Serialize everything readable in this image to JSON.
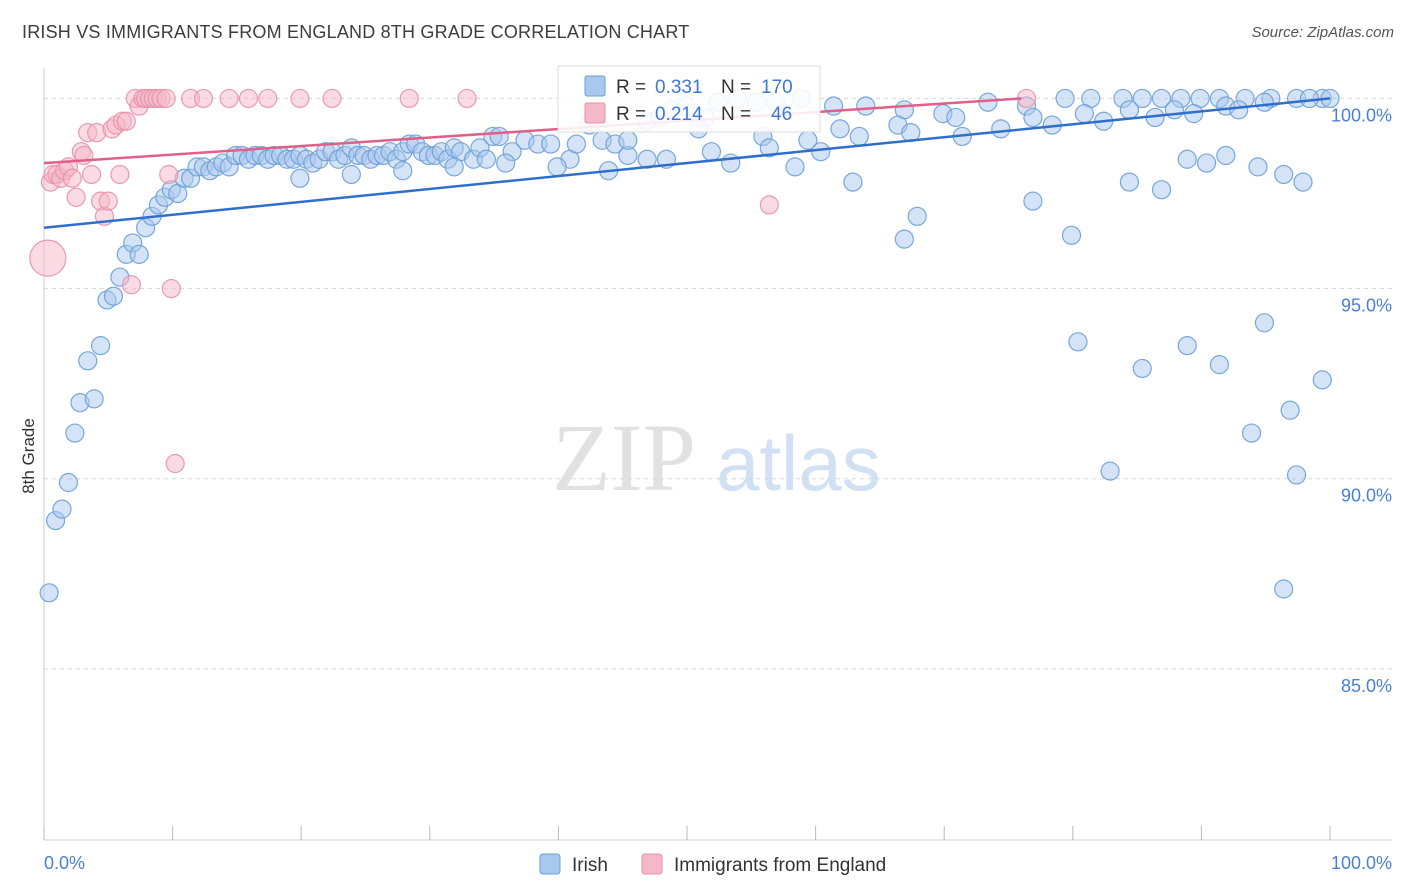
{
  "header": {
    "title": "IRISH VS IMMIGRANTS FROM ENGLAND 8TH GRADE CORRELATION CHART",
    "source": "Source: ZipAtlas.com"
  },
  "watermark": {
    "zip": "ZIP",
    "atlas": "atlas"
  },
  "chart_data": {
    "type": "scatter",
    "ylabel": "8th Grade",
    "xlim": [
      0,
      100
    ],
    "ylim": [
      80.5,
      100.8
    ],
    "y_ticks": [
      {
        "value": 100,
        "label": "100.0%"
      },
      {
        "value": 95,
        "label": "95.0%"
      },
      {
        "value": 90,
        "label": "90.0%"
      },
      {
        "value": 85,
        "label": "85.0%"
      }
    ],
    "x_ticks": [
      {
        "value": 0,
        "label": "0.0%"
      },
      {
        "value": 100,
        "label": "100.0%"
      }
    ],
    "x_minor_ticks": [
      0,
      10,
      20,
      30,
      40,
      50,
      60,
      70,
      80,
      90,
      100
    ],
    "grid": "horizontal-dashed",
    "legend_position": "bottom-center",
    "colors": {
      "irish_fill": "#a9c8ee",
      "irish_stroke": "#6a9fd8",
      "irish_line": "#2f6fcc",
      "england_fill": "#f5b8c8",
      "england_stroke": "#e890a8",
      "england_line": "#e0608a",
      "value_text": "#3d78d8",
      "grid": "#d6d6d6"
    },
    "stats": [
      {
        "r_label": "R = ",
        "r": "0.331",
        "n_label": "N = ",
        "n": "170"
      },
      {
        "r_label": "R = ",
        "r": "0.214",
        "n_label": "N = ",
        "n": "46"
      }
    ],
    "series": [
      {
        "name": "Irish",
        "trend": {
          "x0": 0,
          "y0": 96.6,
          "x1": 100,
          "y1": 100.0
        },
        "points": [
          [
            0.4,
            87.0
          ],
          [
            0.9,
            88.9
          ],
          [
            1.4,
            89.2
          ],
          [
            1.9,
            89.9
          ],
          [
            2.4,
            91.2
          ],
          [
            2.8,
            92.0
          ],
          [
            3.4,
            93.1
          ],
          [
            3.9,
            92.1
          ],
          [
            4.4,
            93.5
          ],
          [
            4.9,
            94.7
          ],
          [
            5.4,
            94.8
          ],
          [
            5.9,
            95.3
          ],
          [
            6.4,
            95.9
          ],
          [
            6.9,
            96.2
          ],
          [
            7.4,
            95.9
          ],
          [
            7.9,
            96.6
          ],
          [
            8.4,
            96.9
          ],
          [
            8.9,
            97.2
          ],
          [
            9.4,
            97.4
          ],
          [
            9.9,
            97.6
          ],
          [
            10.4,
            97.5
          ],
          [
            10.9,
            97.9
          ],
          [
            11.4,
            97.9
          ],
          [
            11.9,
            98.2
          ],
          [
            12.4,
            98.2
          ],
          [
            12.9,
            98.1
          ],
          [
            13.4,
            98.2
          ],
          [
            13.9,
            98.3
          ],
          [
            14.4,
            98.2
          ],
          [
            14.9,
            98.5
          ],
          [
            15.4,
            98.5
          ],
          [
            15.9,
            98.4
          ],
          [
            16.4,
            98.5
          ],
          [
            16.9,
            98.5
          ],
          [
            17.4,
            98.4
          ],
          [
            17.9,
            98.5
          ],
          [
            18.4,
            98.5
          ],
          [
            18.9,
            98.4
          ],
          [
            19.4,
            98.4
          ],
          [
            19.9,
            98.5
          ],
          [
            20.4,
            98.4
          ],
          [
            20.9,
            98.3
          ],
          [
            21.4,
            98.4
          ],
          [
            21.9,
            98.6
          ],
          [
            22.4,
            98.6
          ],
          [
            22.9,
            98.4
          ],
          [
            23.4,
            98.5
          ],
          [
            23.9,
            98.7
          ],
          [
            24.4,
            98.5
          ],
          [
            24.9,
            98.5
          ],
          [
            25.4,
            98.4
          ],
          [
            25.9,
            98.5
          ],
          [
            26.4,
            98.5
          ],
          [
            26.9,
            98.6
          ],
          [
            27.4,
            98.4
          ],
          [
            27.9,
            98.6
          ],
          [
            28.4,
            98.8
          ],
          [
            28.9,
            98.8
          ],
          [
            29.4,
            98.6
          ],
          [
            29.9,
            98.5
          ],
          [
            30.4,
            98.5
          ],
          [
            30.9,
            98.6
          ],
          [
            31.4,
            98.4
          ],
          [
            31.9,
            98.7
          ],
          [
            32.4,
            98.6
          ],
          [
            33.4,
            98.4
          ],
          [
            33.9,
            98.7
          ],
          [
            34.4,
            98.4
          ],
          [
            34.9,
            99.0
          ],
          [
            35.4,
            99.0
          ],
          [
            36.4,
            98.6
          ],
          [
            37.4,
            98.9
          ],
          [
            38.4,
            98.8
          ],
          [
            39.4,
            98.8
          ],
          [
            40.9,
            98.4
          ],
          [
            42.4,
            99.3
          ],
          [
            43.4,
            98.9
          ],
          [
            44.4,
            98.8
          ],
          [
            45.4,
            98.5
          ],
          [
            46.9,
            99.4
          ],
          [
            47.9,
            99.5
          ],
          [
            48.9,
            99.7
          ],
          [
            49.9,
            99.8
          ],
          [
            51.4,
            99.5
          ],
          [
            52.4,
            99.9
          ],
          [
            53.9,
            100.0
          ],
          [
            55.4,
            99.9
          ],
          [
            56.9,
            99.9
          ],
          [
            58.9,
            100.0
          ],
          [
            61.4,
            99.8
          ],
          [
            63.9,
            99.8
          ],
          [
            66.9,
            99.7
          ],
          [
            69.9,
            99.6
          ],
          [
            73.4,
            99.9
          ],
          [
            76.4,
            99.8
          ],
          [
            79.4,
            100.0
          ],
          [
            81.4,
            100.0
          ],
          [
            83.9,
            100.0
          ],
          [
            85.4,
            100.0
          ],
          [
            86.9,
            100.0
          ],
          [
            88.4,
            100.0
          ],
          [
            89.9,
            100.0
          ],
          [
            91.4,
            100.0
          ],
          [
            93.4,
            100.0
          ],
          [
            95.4,
            100.0
          ],
          [
            97.4,
            100.0
          ],
          [
            99.4,
            100.0
          ],
          [
            100.0,
            100.0
          ],
          [
            96.4,
            98.0
          ],
          [
            60.4,
            98.6
          ],
          [
            58.4,
            98.2
          ],
          [
            53.4,
            98.3
          ],
          [
            48.4,
            98.4
          ],
          [
            43.9,
            98.1
          ],
          [
            39.9,
            98.2
          ],
          [
            35.9,
            98.3
          ],
          [
            31.9,
            98.2
          ],
          [
            27.9,
            98.1
          ],
          [
            23.9,
            98.0
          ],
          [
            19.9,
            97.9
          ],
          [
            45.4,
            98.9
          ],
          [
            50.9,
            99.2
          ],
          [
            55.9,
            99.0
          ],
          [
            61.9,
            99.2
          ],
          [
            66.4,
            99.3
          ],
          [
            70.9,
            99.5
          ],
          [
            76.9,
            99.5
          ],
          [
            80.9,
            99.6
          ],
          [
            84.4,
            99.7
          ],
          [
            87.9,
            99.7
          ],
          [
            91.9,
            99.8
          ],
          [
            94.9,
            99.9
          ],
          [
            98.4,
            100.0
          ],
          [
            41.4,
            98.8
          ],
          [
            46.9,
            98.4
          ],
          [
            51.9,
            98.6
          ],
          [
            56.4,
            98.7
          ],
          [
            59.4,
            98.9
          ],
          [
            63.4,
            99.0
          ],
          [
            67.4,
            99.1
          ],
          [
            71.4,
            99.0
          ],
          [
            74.4,
            99.2
          ],
          [
            78.4,
            99.3
          ],
          [
            82.4,
            99.4
          ],
          [
            86.4,
            99.5
          ],
          [
            89.4,
            99.6
          ],
          [
            92.9,
            99.7
          ],
          [
            90.4,
            98.3
          ],
          [
            94.4,
            98.2
          ],
          [
            97.9,
            97.8
          ],
          [
            62.9,
            97.8
          ],
          [
            66.9,
            96.3
          ],
          [
            67.9,
            96.9
          ],
          [
            76.9,
            97.3
          ],
          [
            79.9,
            96.4
          ],
          [
            84.4,
            97.8
          ],
          [
            86.9,
            97.6
          ],
          [
            88.9,
            98.4
          ],
          [
            91.9,
            98.5
          ],
          [
            94.9,
            94.1
          ],
          [
            91.4,
            93.0
          ],
          [
            93.9,
            91.2
          ],
          [
            96.9,
            91.8
          ],
          [
            99.4,
            92.6
          ],
          [
            96.4,
            87.1
          ],
          [
            97.4,
            90.1
          ],
          [
            88.9,
            93.5
          ],
          [
            85.4,
            92.9
          ],
          [
            82.9,
            90.2
          ],
          [
            80.4,
            93.6
          ]
        ]
      },
      {
        "name": "Immigrants from England",
        "trend": {
          "x0": 0,
          "y0": 98.3,
          "x1": 76,
          "y1": 100.0
        },
        "points": [
          [
            0.3,
            95.8
          ],
          [
            0.5,
            97.8
          ],
          [
            0.7,
            98.0
          ],
          [
            1.0,
            98.0
          ],
          [
            1.3,
            97.9
          ],
          [
            1.6,
            98.1
          ],
          [
            1.9,
            98.2
          ],
          [
            2.2,
            97.9
          ],
          [
            2.5,
            97.4
          ],
          [
            2.9,
            98.6
          ],
          [
            3.1,
            98.5
          ],
          [
            3.4,
            99.1
          ],
          [
            3.7,
            98.0
          ],
          [
            4.1,
            99.1
          ],
          [
            4.4,
            97.3
          ],
          [
            4.7,
            96.9
          ],
          [
            5.0,
            97.3
          ],
          [
            5.3,
            99.2
          ],
          [
            5.6,
            99.3
          ],
          [
            5.9,
            98.0
          ],
          [
            6.1,
            99.4
          ],
          [
            6.4,
            99.4
          ],
          [
            6.8,
            95.1
          ],
          [
            7.1,
            100.0
          ],
          [
            7.4,
            99.8
          ],
          [
            7.7,
            100.0
          ],
          [
            7.9,
            100.0
          ],
          [
            8.2,
            100.0
          ],
          [
            8.5,
            100.0
          ],
          [
            8.8,
            100.0
          ],
          [
            9.1,
            100.0
          ],
          [
            9.5,
            100.0
          ],
          [
            9.7,
            98.0
          ],
          [
            9.9,
            95.0
          ],
          [
            10.2,
            90.4
          ],
          [
            11.4,
            100.0
          ],
          [
            12.4,
            100.0
          ],
          [
            14.4,
            100.0
          ],
          [
            15.9,
            100.0
          ],
          [
            17.4,
            100.0
          ],
          [
            19.9,
            100.0
          ],
          [
            22.4,
            100.0
          ],
          [
            28.4,
            100.0
          ],
          [
            32.9,
            100.0
          ],
          [
            56.4,
            97.2
          ],
          [
            76.4,
            100.0
          ]
        ]
      }
    ]
  }
}
